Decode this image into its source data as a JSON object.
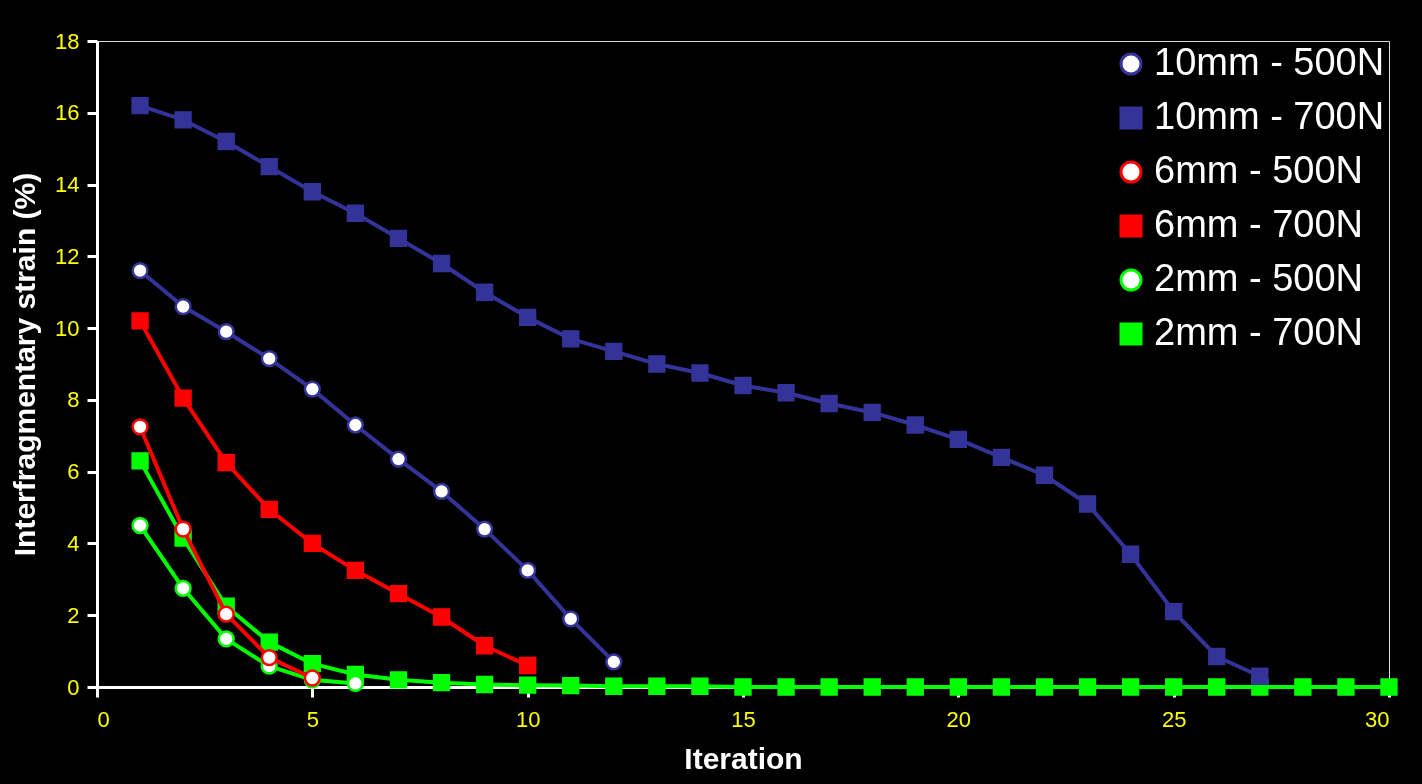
{
  "chart_data": {
    "type": "line",
    "xlabel": "Iteration",
    "ylabel": "Interfragmentary strain (%)",
    "x": [
      1,
      2,
      3,
      4,
      5,
      6,
      7,
      8,
      9,
      10,
      11,
      12,
      13,
      14,
      15,
      16,
      17,
      18,
      19,
      20,
      21,
      22,
      23,
      24,
      25,
      26,
      27,
      28,
      29,
      30
    ],
    "xlim": [
      0,
      30
    ],
    "xticks": [
      0,
      5,
      10,
      15,
      20,
      25,
      30
    ],
    "ylim": [
      0,
      18
    ],
    "yticks": [
      0,
      2,
      4,
      6,
      8,
      10,
      12,
      14,
      16,
      18
    ],
    "grid": false,
    "legend": "top right",
    "line_style": "solid",
    "series": [
      {
        "name": "10mm - 500N",
        "color": "#333399",
        "marker": "circle",
        "values": [
          11.6,
          10.6,
          9.9,
          9.15,
          8.3,
          7.3,
          6.35,
          5.45,
          4.4,
          3.25,
          1.9,
          0.7,
          null,
          null,
          null,
          null,
          null,
          null,
          null,
          null,
          null,
          null,
          null,
          null,
          null,
          null,
          null,
          null,
          null,
          null
        ]
      },
      {
        "name": "10mm - 700N",
        "color": "#333399",
        "marker": "square",
        "values": [
          16.2,
          15.8,
          15.2,
          14.5,
          13.8,
          13.2,
          12.5,
          11.8,
          11.0,
          10.3,
          9.7,
          9.35,
          9.0,
          8.75,
          8.4,
          8.2,
          7.9,
          7.65,
          7.3,
          6.9,
          6.4,
          5.9,
          5.1,
          3.7,
          2.1,
          0.85,
          0.3,
          null,
          null,
          null
        ]
      },
      {
        "name": "6mm - 500N",
        "color": "#ff0000",
        "marker": "circle",
        "values": [
          7.25,
          4.4,
          2.03,
          0.82,
          0.25,
          null,
          null,
          null,
          null,
          null,
          null,
          null,
          null,
          null,
          null,
          null,
          null,
          null,
          null,
          null,
          null,
          null,
          null,
          null,
          null,
          null,
          null,
          null,
          null,
          null
        ]
      },
      {
        "name": "6mm - 700N",
        "color": "#ff0000",
        "marker": "square",
        "values": [
          10.2,
          8.05,
          6.25,
          4.95,
          4.0,
          3.25,
          2.6,
          1.95,
          1.15,
          0.6,
          null,
          null,
          null,
          null,
          null,
          null,
          null,
          null,
          null,
          null,
          null,
          null,
          null,
          null,
          null,
          null,
          null,
          null,
          null,
          null
        ]
      },
      {
        "name": "2mm - 500N",
        "color": "#00ff00",
        "marker": "circle",
        "values": [
          4.5,
          2.75,
          1.34,
          0.58,
          0.2,
          0.1,
          null,
          null,
          null,
          null,
          null,
          null,
          null,
          null,
          null,
          null,
          null,
          null,
          null,
          null,
          null,
          null,
          null,
          null,
          null,
          null,
          null,
          null,
          null,
          null
        ]
      },
      {
        "name": "2mm - 700N",
        "color": "#00ff00",
        "marker": "square",
        "values": [
          6.3,
          4.15,
          2.25,
          1.25,
          0.65,
          0.35,
          0.2,
          0.12,
          0.07,
          0.05,
          0.04,
          0.02,
          0.02,
          0.02,
          0,
          0,
          0,
          0,
          0,
          0,
          0,
          0,
          0,
          0,
          0,
          0,
          0,
          0,
          0,
          0
        ]
      }
    ]
  }
}
